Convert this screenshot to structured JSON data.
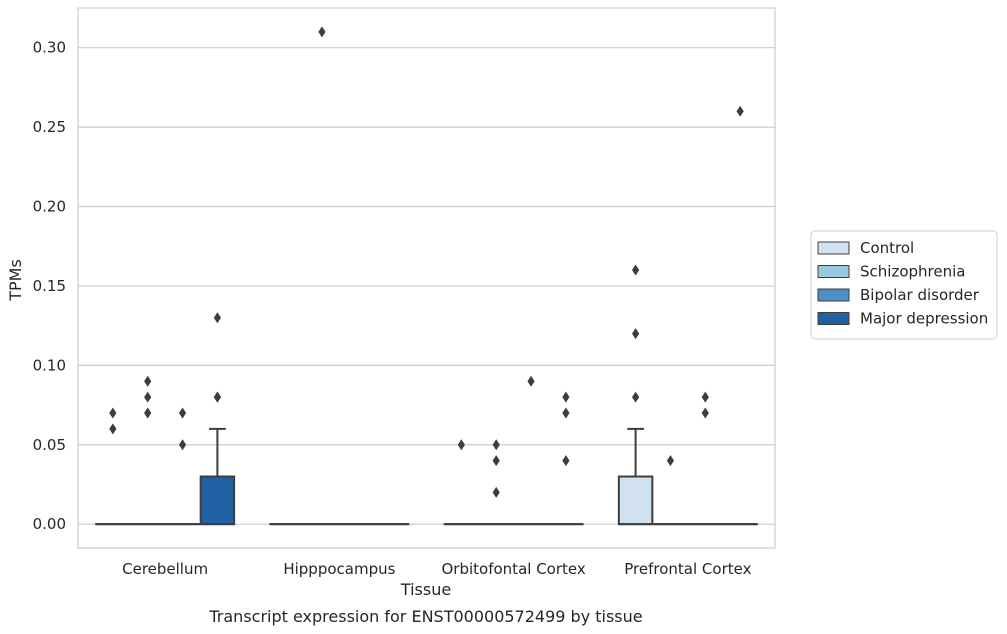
{
  "chart_data": {
    "type": "box",
    "caption": "Transcript expression for ENST00000572499 by tissue",
    "xlabel": "Tissue",
    "ylabel": "TPMs",
    "ylim": [
      -0.015,
      0.325
    ],
    "yticks": [
      "0.00",
      "0.05",
      "0.10",
      "0.15",
      "0.20",
      "0.25",
      "0.30"
    ],
    "ytick_values": [
      0.0,
      0.05,
      0.1,
      0.15,
      0.2,
      0.25,
      0.3
    ],
    "grid": true,
    "legend_placement": "right",
    "categories": [
      "Cerebellum",
      "Hipppocampus",
      "Orbitofontal Cortex",
      "Prefrontal Cortex"
    ],
    "series": [
      {
        "name": "Control",
        "color": "#d1e1ef",
        "boxes": [
          {
            "q1": 0,
            "median": 0,
            "q3": 0,
            "whisker_low": 0,
            "whisker_high": 0,
            "outliers": [
              0.07,
              0.06
            ]
          },
          {
            "q1": 0,
            "median": 0,
            "q3": 0,
            "whisker_low": 0,
            "whisker_high": 0,
            "outliers": []
          },
          {
            "q1": 0,
            "median": 0,
            "q3": 0,
            "whisker_low": 0,
            "whisker_high": 0,
            "outliers": [
              0.05
            ]
          },
          {
            "q1": 0,
            "median": 0,
            "q3": 0.03,
            "whisker_low": 0,
            "whisker_high": 0.06,
            "outliers": [
              0.16,
              0.12,
              0.08
            ]
          }
        ]
      },
      {
        "name": "Schizophrenia",
        "color": "#9ac8e0",
        "boxes": [
          {
            "q1": 0,
            "median": 0,
            "q3": 0,
            "whisker_low": 0,
            "whisker_high": 0,
            "outliers": [
              0.09,
              0.08,
              0.07
            ]
          },
          {
            "q1": 0,
            "median": 0,
            "q3": 0,
            "whisker_low": 0,
            "whisker_high": 0,
            "outliers": [
              0.31
            ]
          },
          {
            "q1": 0,
            "median": 0,
            "q3": 0,
            "whisker_low": 0,
            "whisker_high": 0,
            "outliers": [
              0.05,
              0.04,
              0.02
            ]
          },
          {
            "q1": 0,
            "median": 0,
            "q3": 0,
            "whisker_low": 0,
            "whisker_high": 0,
            "outliers": [
              0.04
            ]
          }
        ]
      },
      {
        "name": "Bipolar disorder",
        "color": "#4c91c4",
        "boxes": [
          {
            "q1": 0,
            "median": 0,
            "q3": 0,
            "whisker_low": 0,
            "whisker_high": 0,
            "outliers": [
              0.07,
              0.05
            ]
          },
          {
            "q1": 0,
            "median": 0,
            "q3": 0,
            "whisker_low": 0,
            "whisker_high": 0,
            "outliers": []
          },
          {
            "q1": 0,
            "median": 0,
            "q3": 0,
            "whisker_low": 0,
            "whisker_high": 0,
            "outliers": [
              0.09
            ]
          },
          {
            "q1": 0,
            "median": 0,
            "q3": 0,
            "whisker_low": 0,
            "whisker_high": 0,
            "outliers": [
              0.08,
              0.07
            ]
          }
        ]
      },
      {
        "name": "Major depression",
        "color": "#2161a3",
        "boxes": [
          {
            "q1": 0,
            "median": 0,
            "q3": 0.03,
            "whisker_low": 0,
            "whisker_high": 0.06,
            "outliers": [
              0.13,
              0.08,
              0.08
            ]
          },
          {
            "q1": 0,
            "median": 0,
            "q3": 0,
            "whisker_low": 0,
            "whisker_high": 0,
            "outliers": []
          },
          {
            "q1": 0,
            "median": 0,
            "q3": 0,
            "whisker_low": 0,
            "whisker_high": 0,
            "outliers": [
              0.08,
              0.07,
              0.04
            ]
          },
          {
            "q1": 0,
            "median": 0,
            "q3": 0,
            "whisker_low": 0,
            "whisker_high": 0,
            "outliers": [
              0.26
            ]
          }
        ]
      }
    ]
  }
}
